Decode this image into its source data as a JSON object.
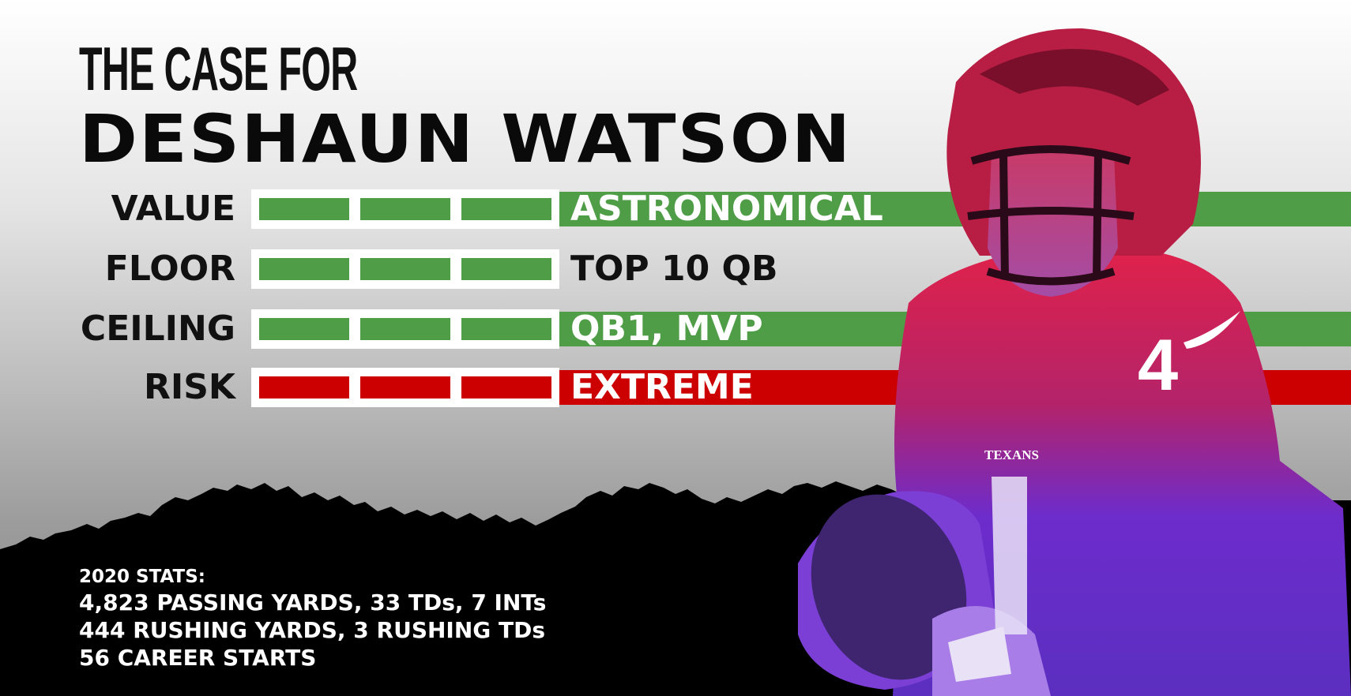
{
  "title": {
    "line1": "THE CASE FOR",
    "line2": "DESHAUN WATSON"
  },
  "rows": [
    {
      "label": "VALUE",
      "value": "ASTRONOMICAL",
      "level": 3,
      "band": "#4f9d47",
      "meter_color": "#4f9d47",
      "value_color": "#ffffff"
    },
    {
      "label": "FLOOR",
      "value": "TOP 10 QB",
      "level": 3,
      "band": "none",
      "meter_color": "#4f9d47",
      "value_color": "#111111"
    },
    {
      "label": "CEILING",
      "value": "QB1, MVP",
      "level": 3,
      "band": "#4f9d47",
      "meter_color": "#4f9d47",
      "value_color": "#ffffff"
    },
    {
      "label": "RISK",
      "value": "EXTREME",
      "level": 3,
      "band": "#cc0000",
      "meter_color": "#cc0000",
      "value_color": "#ffffff"
    }
  ],
  "stats": {
    "heading": "2020 STATS:",
    "lines": [
      "4,823 PASSING YARDS, 33 TDs, 7 INTs",
      "444 RUSHING YARDS, 3 RUSHING TDs",
      "56 CAREER STARTS"
    ]
  },
  "jersey": {
    "number": "4",
    "team": "TEXANS"
  },
  "colors": {
    "accent_green": "#4f9d47",
    "accent_red": "#cc0000",
    "duotone_top": "#d8234f",
    "duotone_bottom": "#6a2fd0"
  }
}
